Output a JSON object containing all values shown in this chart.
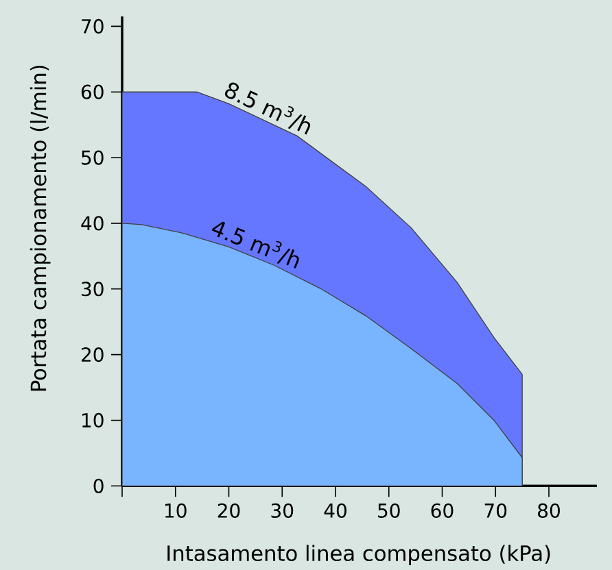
{
  "chart_data": {
    "type": "area",
    "xlabel": "Intasamento linea compensato (kPa)",
    "ylabel": "Portata campionamento  (l/min)",
    "xlim": [
      0,
      89
    ],
    "ylim": [
      0,
      71.5
    ],
    "xticks": [
      {
        "value": 0,
        "label": null
      },
      10,
      20,
      30,
      40,
      50,
      60,
      70,
      80
    ],
    "yticks": [
      0,
      10,
      20,
      30,
      40,
      50,
      60,
      70
    ],
    "grid": false,
    "series": [
      {
        "name": "8.5 m$^{3}$/h",
        "color": "#6677ff",
        "x": [
          0,
          14,
          20,
          32.8,
          45.7,
          54.2,
          62.8,
          69.7,
          75,
          75
        ],
        "values": [
          60,
          60,
          58.2,
          53.3,
          45.6,
          39.3,
          31,
          22.6,
          17,
          0
        ]
      },
      {
        "name": "4.5 m$^{3}$/h",
        "color": "#78b4ff",
        "x": [
          0,
          3.7,
          11.4,
          20,
          28.5,
          37.1,
          45.7,
          54.2,
          62.8,
          69.7,
          75,
          75
        ],
        "values": [
          40,
          39.8,
          38.5,
          36.4,
          33.6,
          30.1,
          25.9,
          20.9,
          15.6,
          10,
          4.3,
          0
        ]
      }
    ]
  }
}
